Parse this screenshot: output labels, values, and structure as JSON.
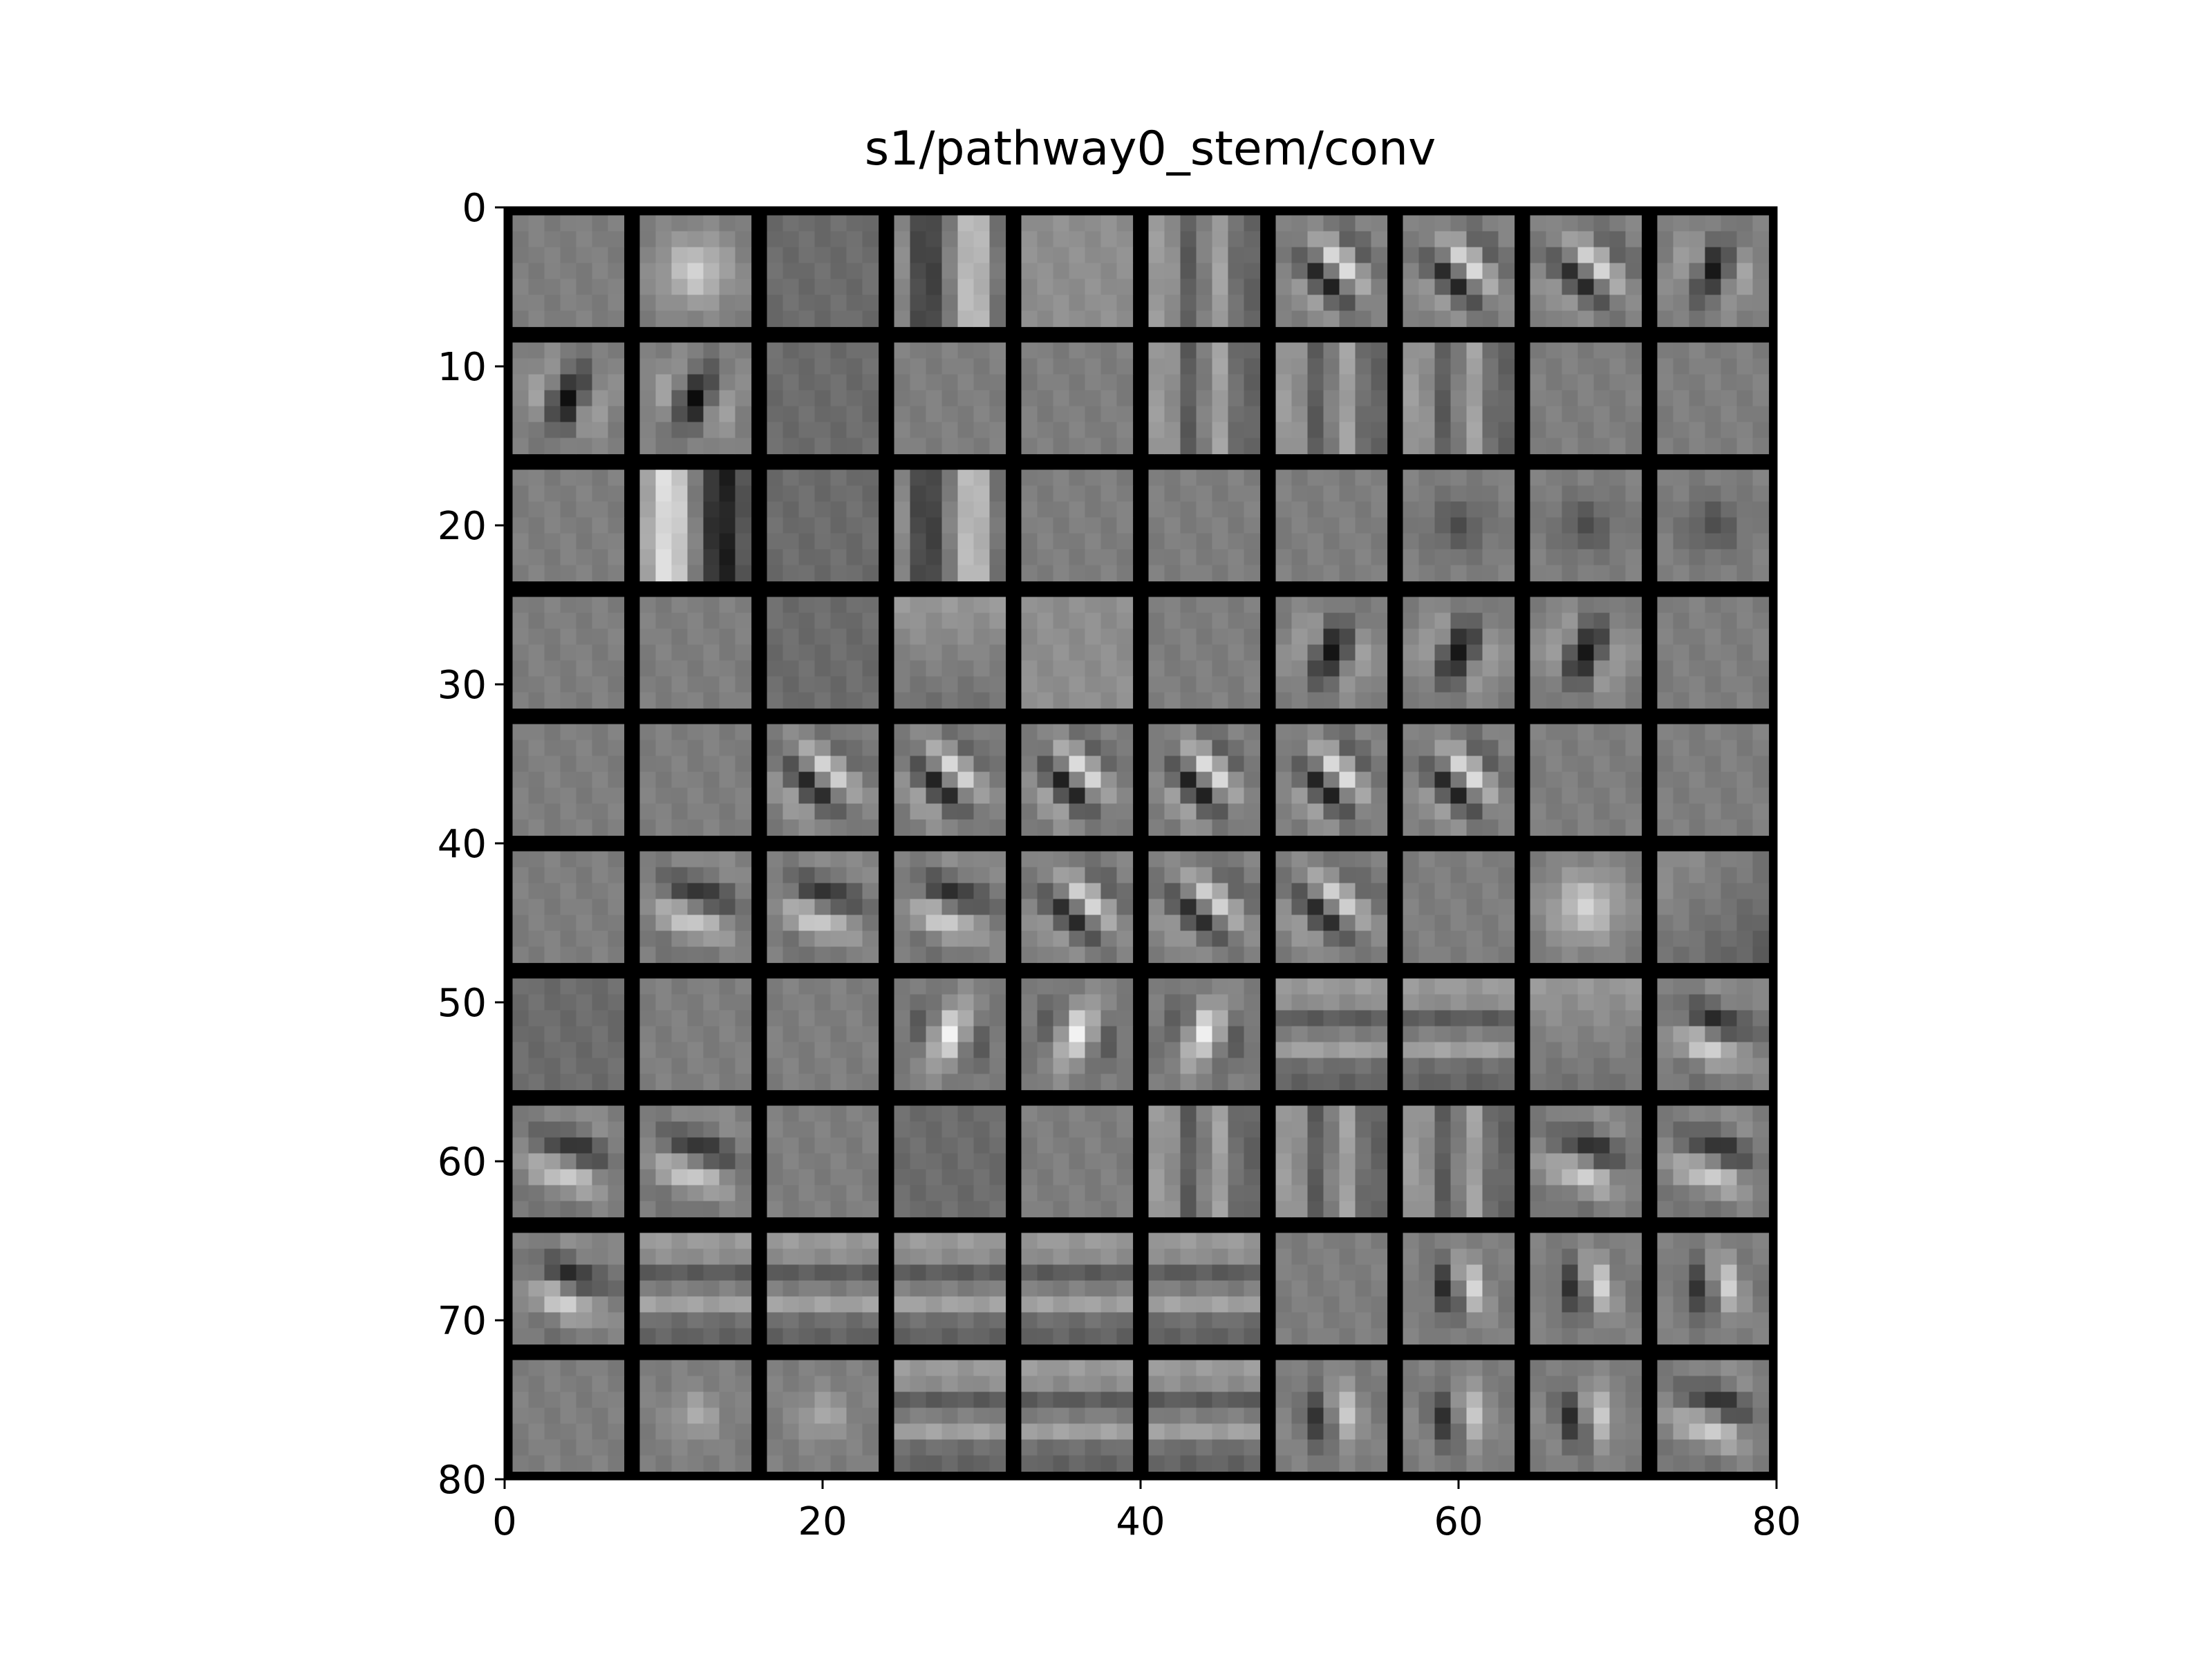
{
  "chart_data": {
    "type": "heatmap",
    "title": "s1/pathway0_stem/conv",
    "xlabel": "",
    "ylabel": "",
    "colormap": "gray",
    "xlim": [
      0,
      80
    ],
    "ylim": [
      80,
      0
    ],
    "x_ticks": [
      "0",
      "20",
      "40",
      "60",
      "80"
    ],
    "y_ticks": [
      "0",
      "10",
      "20",
      "30",
      "40",
      "50",
      "60",
      "70",
      "80"
    ],
    "grid_rows": 10,
    "grid_cols": 10,
    "kernel_size": 7,
    "separator_color": "#000000",
    "tiles": [
      [
        "flat",
        "blob-light",
        "flat-dark",
        "vbar",
        "flat-light",
        "vstripes",
        "gabor-diag",
        "gabor-diag",
        "gabor-diag",
        "gabor-diag-dark"
      ],
      [
        "gabor-dark",
        "gabor-dark",
        "flat-dark",
        "flat",
        "flat",
        "vstripes",
        "vstripes",
        "vstripes",
        "flat",
        "flat"
      ],
      [
        "flat",
        "vbar-strong",
        "flat-dark",
        "vbar",
        "flat",
        "flat",
        "flat",
        "center-dark",
        "center-dark",
        "center-dark"
      ],
      [
        "flat",
        "flat",
        "flat-dark",
        "hgrad",
        "flat-light",
        "flat",
        "gabor-dark",
        "gabor-dark",
        "gabor-dark",
        "flat"
      ],
      [
        "flat",
        "flat",
        "gabor-diag",
        "gabor-diag",
        "gabor-diag",
        "gabor-diag",
        "gabor-diag",
        "gabor-diag",
        "flat",
        "flat"
      ],
      [
        "flat",
        "gabor-h",
        "gabor-h",
        "gabor-h",
        "gabor-diag",
        "gabor-diag",
        "gabor-diag",
        "flat",
        "blob-light",
        "hgrad-dark"
      ],
      [
        "flat-dark",
        "flat",
        "flat",
        "gabor-light",
        "gabor-light",
        "gabor-light",
        "hstripes",
        "hstripes",
        "hgrad",
        "gabor-h"
      ],
      [
        "gabor-h",
        "gabor-h",
        "flat",
        "flat-dark",
        "flat",
        "vstripes",
        "vstripes",
        "vstripes",
        "gabor-h",
        "gabor-h"
      ],
      [
        "gabor-h",
        "hstripes",
        "hstripes",
        "hstripes",
        "hstripes",
        "hstripes",
        "flat",
        "gabor-dot",
        "gabor-dot",
        "gabor-dot"
      ],
      [
        "flat",
        "center-light",
        "center-light",
        "hstripes",
        "hstripes",
        "hstripes",
        "gabor-dot",
        "gabor-dot",
        "gabor-dot",
        "gabor-h"
      ]
    ]
  }
}
